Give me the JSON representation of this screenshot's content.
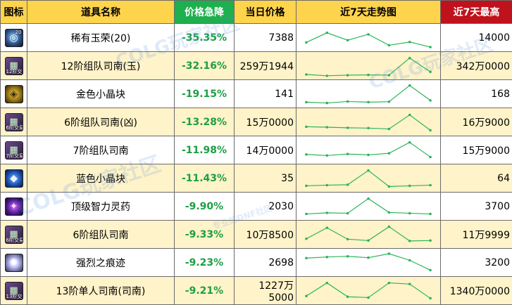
{
  "headers": {
    "icon": "图标",
    "name": "道具名称",
    "drop": "价格急降",
    "price": "当日价格",
    "trend": "近7天走势图",
    "max": "近7天最高"
  },
  "colors": {
    "header_bg": "#ffd44d",
    "drop_header_bg": "#1eaf4e",
    "max_header_bg": "#c0121c",
    "drop_text": "#1d9e45",
    "trend_line": "#2bb35a",
    "even_row_bg": "#fff3c9"
  },
  "items": [
    {
      "icon": "orb-icon",
      "icon_badge": "20",
      "tag": "",
      "name": "稀有玉荣(20)",
      "drop": "-35.35%",
      "price": "7388",
      "max": "14000",
      "trend": [
        0.72,
        0.28,
        0.62,
        0.35,
        0.85,
        0.7,
        0.93
      ]
    },
    {
      "icon": "box-icon",
      "icon_badge": "",
      "tag": "12阶交易",
      "name": "12阶组队司南(玉)",
      "drop": "-32.16%",
      "price": "259万1944",
      "max": "342万0000",
      "trend": [
        0.9,
        0.96,
        0.93,
        0.92,
        0.93,
        0.15,
        0.78
      ]
    },
    {
      "icon": "gold-icon",
      "icon_badge": "",
      "tag": "",
      "name": "金色小晶块",
      "drop": "-19.15%",
      "price": "141",
      "max": "168",
      "trend": [
        0.88,
        0.92,
        0.85,
        0.88,
        0.86,
        0.12,
        0.8
      ]
    },
    {
      "icon": "box-icon",
      "icon_badge": "",
      "tag": "6阶交易",
      "name": "6阶组队司南(凶)",
      "drop": "-13.28%",
      "price": "15万0000",
      "max": "16万9000",
      "trend": [
        0.72,
        0.74,
        0.77,
        0.78,
        0.82,
        0.18,
        0.88
      ]
    },
    {
      "icon": "box-icon",
      "icon_badge": "",
      "tag": "7阶交易",
      "name": "7阶组队司南",
      "drop": "-11.98%",
      "price": "14万0000",
      "max": "15万9000",
      "trend": [
        0.7,
        0.75,
        0.68,
        0.72,
        0.65,
        0.15,
        0.82
      ]
    },
    {
      "icon": "blue-icon",
      "icon_badge": "",
      "tag": "",
      "name": "蓝色小晶块",
      "drop": "-11.43%",
      "price": "35",
      "max": "64",
      "trend": [
        0.85,
        0.82,
        0.8,
        0.15,
        0.88,
        0.85,
        0.82
      ]
    },
    {
      "icon": "potion-icon",
      "icon_badge": "",
      "tag": "",
      "name": "顶级智力灵药",
      "drop": "-9.90%",
      "price": "2030",
      "max": "3700",
      "trend": [
        0.85,
        0.8,
        0.82,
        0.15,
        0.78,
        0.82,
        0.85
      ]
    },
    {
      "icon": "box-icon",
      "icon_badge": "",
      "tag": "6阶交易",
      "name": "6阶组队司南",
      "drop": "-9.33%",
      "price": "10万8500",
      "max": "11万9999",
      "trend": [
        0.7,
        0.2,
        0.72,
        0.78,
        0.15,
        0.8,
        0.78
      ]
    },
    {
      "icon": "sparkle-icon",
      "icon_badge": "",
      "tag": "",
      "name": "强烈之痕迹",
      "drop": "-9.23%",
      "price": "2698",
      "max": "3200",
      "trend": [
        0.3,
        0.25,
        0.22,
        0.28,
        0.1,
        0.4,
        0.85
      ]
    },
    {
      "icon": "box-icon",
      "icon_badge": "",
      "tag": "13阶交易",
      "name": "13阶单人司南(司南)",
      "drop": "-9.21%",
      "price": "1227万5000",
      "max": "1340万0000",
      "trend": [
        0.75,
        0.15,
        0.78,
        0.82,
        0.15,
        0.2,
        0.85
      ]
    }
  ],
  "watermarks": [
    "COLG玩家社区",
    "专业的DNF社区",
    "COLG玩家社区",
    "COLG玩家社区"
  ]
}
